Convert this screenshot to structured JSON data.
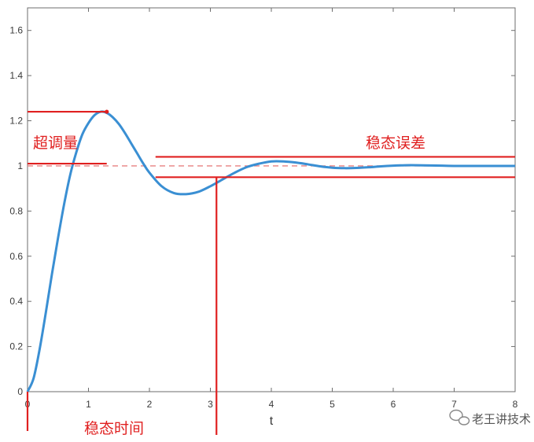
{
  "chart_data": {
    "type": "line",
    "xlabel": "t",
    "ylabel": "",
    "xlim": [
      0,
      8
    ],
    "ylim": [
      0,
      1.7
    ],
    "xticks": [
      0,
      1,
      2,
      3,
      4,
      5,
      6,
      7,
      8
    ],
    "yticks": [
      0,
      0.2,
      0.4,
      0.6,
      0.8,
      1,
      1.2,
      1.4,
      1.6
    ],
    "ytick_labels": [
      "0",
      "0.2",
      "0.4",
      "0.6",
      "0.8",
      "1",
      "1.2",
      "1.4",
      "1.6"
    ],
    "grid": false,
    "series": [
      {
        "x": [
          0,
          0.1,
          0.2,
          0.3,
          0.4,
          0.5,
          0.6,
          0.7,
          0.8,
          0.9,
          1.0,
          1.1,
          1.2,
          1.3,
          1.4,
          1.5,
          1.6,
          1.7,
          1.8,
          1.9,
          2.0,
          2.2,
          2.4,
          2.6,
          2.8,
          3.0,
          3.2,
          3.4,
          3.6,
          3.8,
          4.0,
          4.2,
          4.4,
          4.6,
          4.8,
          5.0,
          5.2,
          5.4,
          5.6,
          5.8,
          6.0,
          6.2,
          6.4,
          6.6,
          6.8,
          7.0,
          7.2,
          7.4,
          7.6,
          7.8,
          8.0
        ],
        "y": [
          0,
          0.06,
          0.19,
          0.35,
          0.52,
          0.68,
          0.83,
          0.96,
          1.06,
          1.14,
          1.19,
          1.225,
          1.24,
          1.235,
          1.215,
          1.185,
          1.145,
          1.1,
          1.055,
          1.01,
          0.97,
          0.91,
          0.88,
          0.875,
          0.885,
          0.91,
          0.94,
          0.97,
          0.995,
          1.01,
          1.02,
          1.02,
          1.015,
          1.007,
          0.998,
          0.992,
          0.99,
          0.991,
          0.994,
          0.998,
          1.001,
          1.003,
          1.003,
          1.002,
          1.001,
          1.0,
          1.0,
          1.0,
          1.0,
          1.0,
          1.0
        ],
        "color": "#3a8fd3"
      }
    ],
    "reference_line": {
      "y": 1.0,
      "color": "#e88080",
      "style": "dashed"
    },
    "annotations": {
      "overshoot": "超调量",
      "steady_state_error": "稳态误差",
      "settling_time": "稳态时间",
      "overshoot_peak": {
        "x": 1.3,
        "y": 1.24
      },
      "overshoot_base": {
        "x": 1.3,
        "y": 1.01
      },
      "settling_time_x": 3.1,
      "error_band": {
        "upper": 1.04,
        "lower": 0.95,
        "x_start": 2.1,
        "x_end": 8.0
      },
      "color": "#e02020"
    }
  },
  "watermark": {
    "text": "老王讲技术",
    "icon": "wechat-bubble-icon"
  }
}
